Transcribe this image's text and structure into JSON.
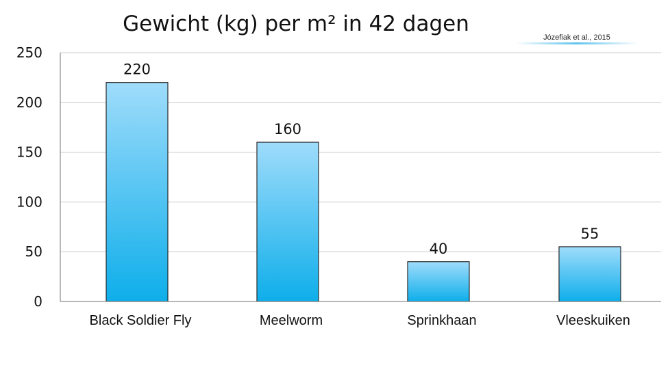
{
  "chart_data": {
    "type": "bar",
    "title": "Gewicht (kg) per m² in 42 dagen",
    "source": "Józefiak et al., 2015",
    "categories": [
      "Black Soldier Fly",
      "Meelworm",
      "Sprinkhaan",
      "Vleeskuiken"
    ],
    "values": [
      220,
      160,
      40,
      55
    ],
    "data_labels": [
      "220",
      "160",
      "40",
      "55"
    ],
    "yticks": [
      0,
      50,
      100,
      150,
      200,
      250
    ],
    "ylim": [
      0,
      250
    ],
    "xlabel": "",
    "ylabel": "",
    "grid": true,
    "legend": "none",
    "colors": {
      "bar_top": "#9fdcfb",
      "bar_bottom": "#0eaeea",
      "source_underline": "#5fc3ec"
    }
  }
}
